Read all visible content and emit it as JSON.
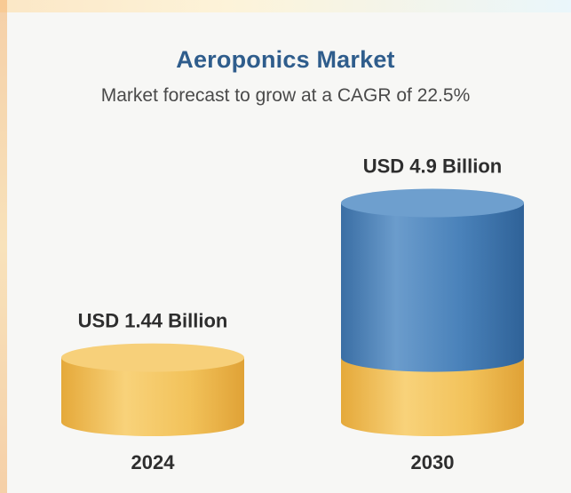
{
  "chart_data": {
    "type": "bar",
    "title": "Aeroponics Market",
    "subtitle": "Market forecast to grow at a CAGR of 22.5%",
    "categories": [
      "2024",
      "2030"
    ],
    "values": [
      1.44,
      4.9
    ],
    "value_labels": [
      "USD 1.44 Billion",
      "USD 4.9 Billion"
    ],
    "colors": {
      "base": "#f2c25a",
      "growth": "#3f78b0",
      "title": "#2f5d8c"
    }
  }
}
